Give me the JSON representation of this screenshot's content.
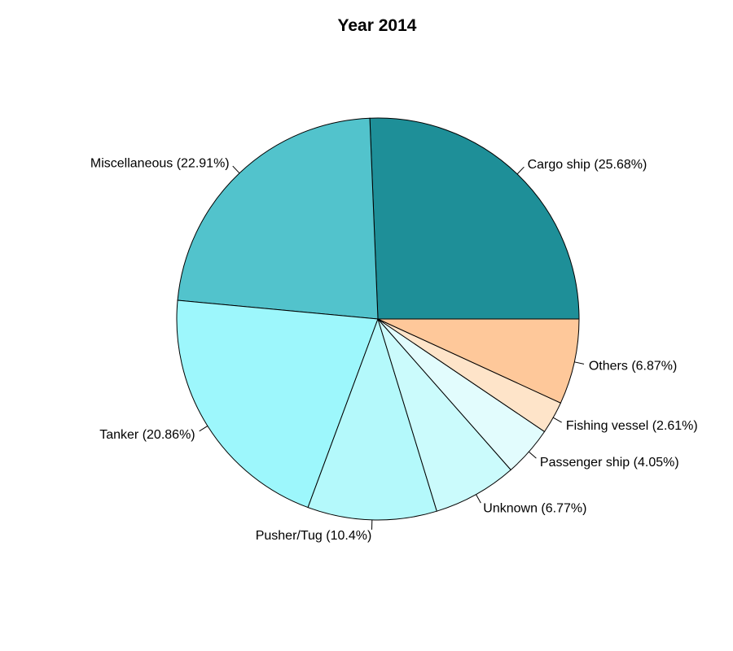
{
  "chart_data": {
    "type": "pie",
    "title": "Year 2014",
    "start_angle_deg": 0,
    "direction": "counterclockwise",
    "slices": [
      {
        "label": "Cargo ship (25.68%)",
        "value": 25.68,
        "color": "#1e8f98"
      },
      {
        "label": "Miscellaneous (22.91%)",
        "value": 22.91,
        "color": "#52c3cc"
      },
      {
        "label": "Tanker (20.86%)",
        "value": 20.86,
        "color": "#9df7fc"
      },
      {
        "label": "Pusher/Tug (10.4%)",
        "value": 10.4,
        "color": "#b4f9fb"
      },
      {
        "label": "Unknown (6.77%)",
        "value": 6.77,
        "color": "#cbfbfc"
      },
      {
        "label": "Passenger ship (4.05%)",
        "value": 4.05,
        "color": "#e2fcfd"
      },
      {
        "label": "Fishing vessel (2.61%)",
        "value": 2.61,
        "color": "#fee4c9"
      },
      {
        "label": "Others (6.87%)",
        "value": 6.87,
        "color": "#fec89a"
      }
    ]
  }
}
